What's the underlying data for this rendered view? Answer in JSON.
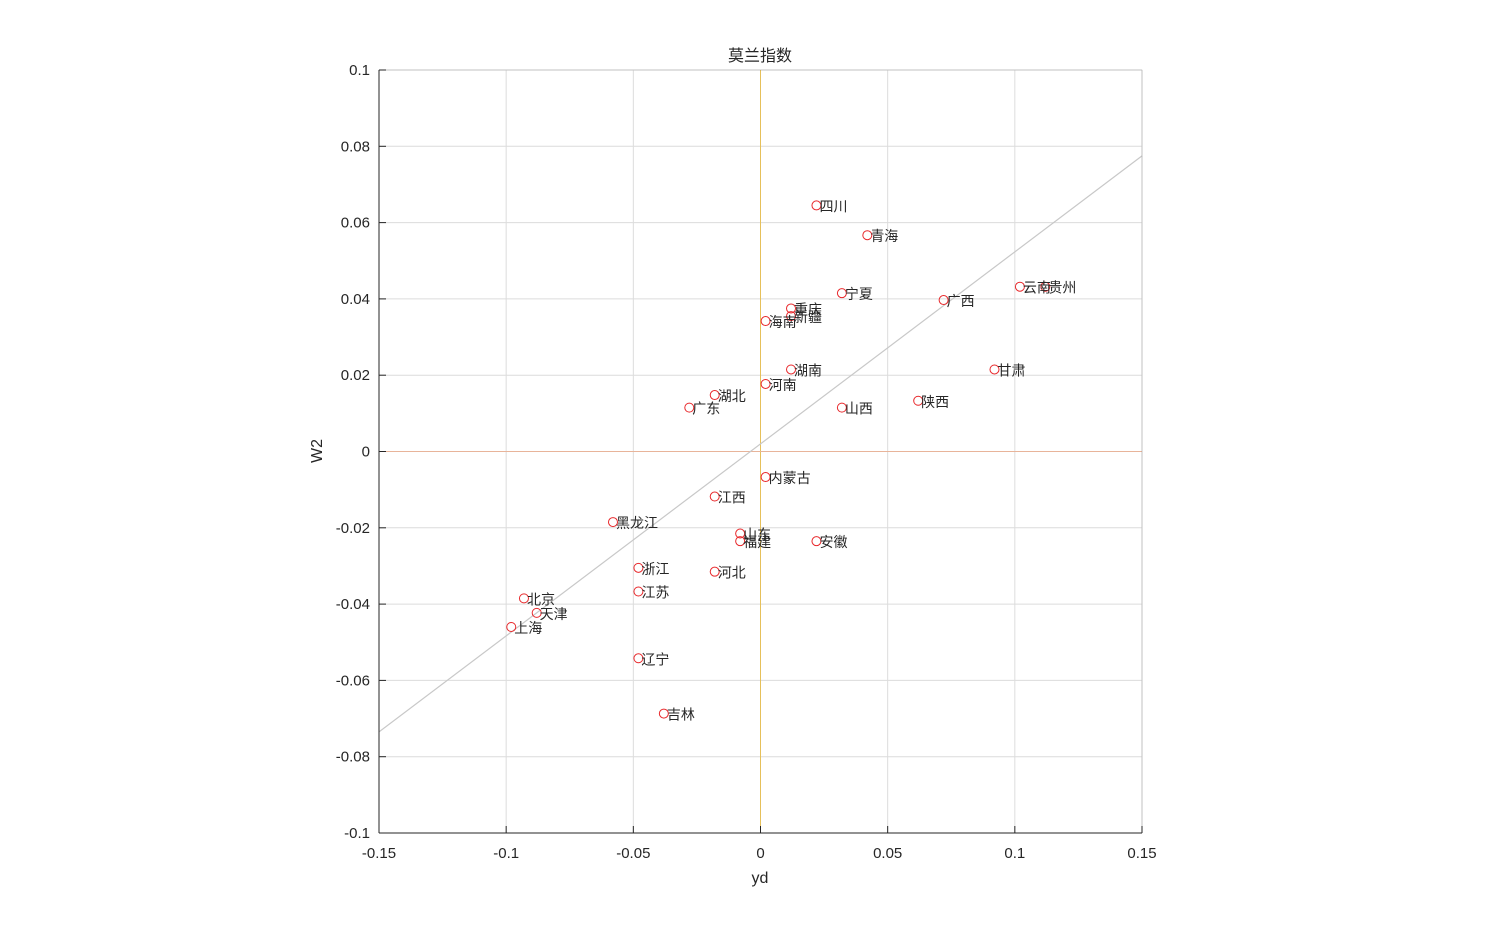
{
  "chart_data": {
    "type": "scatter",
    "title": "莫兰指数",
    "xlabel": "yd",
    "ylabel": "W2",
    "xlim": [
      -0.15,
      0.15
    ],
    "ylim": [
      -0.1,
      0.1
    ],
    "xticks": [
      -0.15,
      -0.1,
      -0.05,
      0,
      0.05,
      0.1,
      0.15
    ],
    "xtick_labels": [
      "-0.15",
      "-0.1",
      "-0.05",
      "0",
      "0.05",
      "0.1",
      "0.15"
    ],
    "yticks": [
      -0.1,
      -0.08,
      -0.06,
      -0.04,
      -0.02,
      0,
      0.02,
      0.04,
      0.06,
      0.08,
      0.1
    ],
    "ytick_labels": [
      "-0.1",
      "-0.08",
      "-0.06",
      "-0.04",
      "-0.02",
      "0",
      "0.02",
      "0.04",
      "0.06",
      "0.08",
      "0.1"
    ],
    "grid": true,
    "points": [
      {
        "label": "四川",
        "x": 0.022,
        "y": 0.0645
      },
      {
        "label": "青海",
        "x": 0.042,
        "y": 0.0567
      },
      {
        "label": "云南",
        "x": 0.102,
        "y": 0.0432
      },
      {
        "label": "贵州",
        "x": 0.112,
        "y": 0.0432
      },
      {
        "label": "宁夏",
        "x": 0.032,
        "y": 0.0415
      },
      {
        "label": "广西",
        "x": 0.072,
        "y": 0.0397
      },
      {
        "label": "重庆",
        "x": 0.012,
        "y": 0.0375
      },
      {
        "label": "新疆",
        "x": 0.012,
        "y": 0.0355
      },
      {
        "label": "海南",
        "x": 0.002,
        "y": 0.0342
      },
      {
        "label": "湖南",
        "x": 0.012,
        "y": 0.0215
      },
      {
        "label": "甘肃",
        "x": 0.092,
        "y": 0.0215
      },
      {
        "label": "河南",
        "x": 0.002,
        "y": 0.0177
      },
      {
        "label": "湖北",
        "x": -0.018,
        "y": 0.0148
      },
      {
        "label": "陕西",
        "x": 0.062,
        "y": 0.0133
      },
      {
        "label": "广东",
        "x": -0.028,
        "y": 0.0115
      },
      {
        "label": "山西",
        "x": 0.032,
        "y": 0.0115
      },
      {
        "label": "内蒙古",
        "x": 0.002,
        "y": -0.0067
      },
      {
        "label": "江西",
        "x": -0.018,
        "y": -0.0118
      },
      {
        "label": "黑龙江",
        "x": -0.058,
        "y": -0.0185
      },
      {
        "label": "山东",
        "x": -0.008,
        "y": -0.0215
      },
      {
        "label": "福建",
        "x": -0.008,
        "y": -0.0235
      },
      {
        "label": "安徽",
        "x": 0.022,
        "y": -0.0235
      },
      {
        "label": "浙江",
        "x": -0.048,
        "y": -0.0305
      },
      {
        "label": "河北",
        "x": -0.018,
        "y": -0.0315
      },
      {
        "label": "江苏",
        "x": -0.048,
        "y": -0.0367
      },
      {
        "label": "北京",
        "x": -0.093,
        "y": -0.0385
      },
      {
        "label": "天津",
        "x": -0.088,
        "y": -0.0423
      },
      {
        "label": "上海",
        "x": -0.098,
        "y": -0.046
      },
      {
        "label": "辽宁",
        "x": -0.048,
        "y": -0.0542
      },
      {
        "label": "吉林",
        "x": -0.038,
        "y": -0.0687
      }
    ],
    "fit_line": {
      "x": [
        -0.15,
        0.15
      ],
      "y": [
        -0.0735,
        0.0775
      ]
    },
    "reference_lines": {
      "x": 0,
      "y": 0
    },
    "colors": {
      "marker": "#e8282b",
      "fit_line": "#c8c8c8",
      "x_zero_line": "#e6c05a",
      "y_zero_line": "#e8b49a",
      "grid": "#dcdcdc",
      "axis": "#262626"
    }
  }
}
